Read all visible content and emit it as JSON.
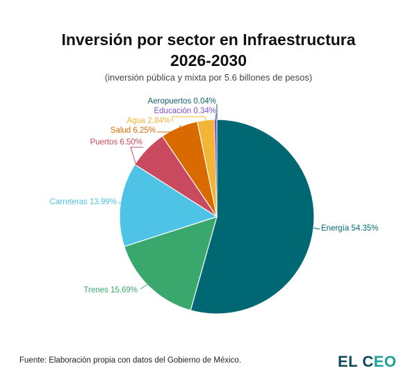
{
  "chart_data": {
    "type": "pie",
    "title": "Inversión por sector en Infraestructura 2026-2030",
    "title_lines": [
      "Inversión por sector en Infraestructura",
      "2026-2030"
    ],
    "subtitle": "(inversión pública y mixta por 5.6 billones de pesos)",
    "start": "top",
    "direction": "clockwise",
    "slices": [
      {
        "label": "Energía",
        "value": 54.35,
        "text": "Energía 54.35%",
        "color": "#006872"
      },
      {
        "label": "Trenes",
        "value": 15.69,
        "text": "Trenes 15.69%",
        "color": "#3aa76d"
      },
      {
        "label": "Carreteras",
        "value": 13.99,
        "text": "Carreteras 13.99%",
        "color": "#4fc3e6"
      },
      {
        "label": "Puertos",
        "value": 6.5,
        "text": "Puertos 6.50%",
        "color": "#c94a5e"
      },
      {
        "label": "Salud",
        "value": 6.25,
        "text": "Salud 6.25%",
        "color": "#d96a00"
      },
      {
        "label": "Agua",
        "value": 2.84,
        "text": "Agua 2.84%",
        "color": "#f2b535"
      },
      {
        "label": "Educación",
        "value": 0.34,
        "text": "Educación 0.34%",
        "color": "#7b4fc9"
      },
      {
        "label": "Aeropuertos",
        "value": 0.04,
        "text": "Aeropuertos 0.04%",
        "color": "#0d5f6b"
      }
    ]
  },
  "footer": {
    "source": "Fuente: Elaboración propia con datos del Gobierno de México.",
    "logo_main": "EL C",
    "logo_accent": "EO"
  }
}
